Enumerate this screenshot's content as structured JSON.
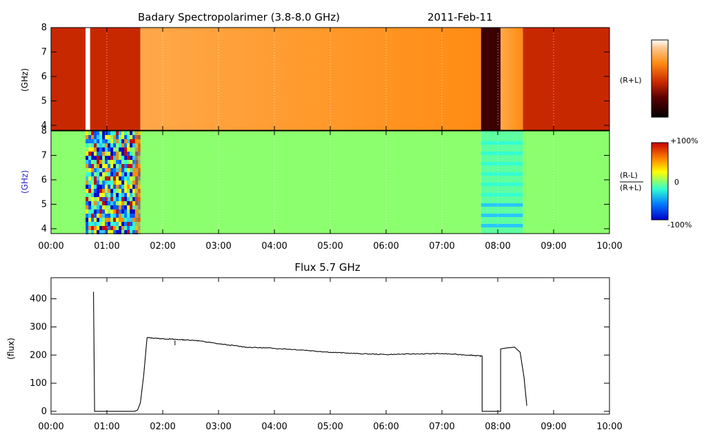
{
  "chart_data": [
    {
      "type": "heatmap",
      "title": "Badary Spectropolarimer (3.8-8.0 GHz)",
      "date": "2011-Feb-11",
      "ylabel": "(GHz)",
      "right_label": "(R+L)",
      "ylim": [
        3.8,
        8.0
      ],
      "yticks": [
        "4",
        "5",
        "6",
        "7",
        "8"
      ],
      "xlim_hours": [
        0,
        10
      ],
      "segments": [
        {
          "start_h": 0.0,
          "end_h": 0.62,
          "level": "dark-red"
        },
        {
          "start_h": 0.62,
          "end_h": 0.7,
          "level": "white"
        },
        {
          "start_h": 0.7,
          "end_h": 1.6,
          "level": "dark-red"
        },
        {
          "start_h": 1.6,
          "end_h": 7.7,
          "level": "orange"
        },
        {
          "start_h": 7.7,
          "end_h": 8.05,
          "level": "black"
        },
        {
          "start_h": 8.05,
          "end_h": 8.45,
          "level": "orange"
        },
        {
          "start_h": 8.45,
          "end_h": 10.0,
          "level": "dark-red"
        }
      ]
    },
    {
      "type": "heatmap",
      "ylabel": "(GHz)",
      "right_label_num": "(R-L)",
      "right_label_den": "(R+L)",
      "ylim": [
        3.8,
        8.0
      ],
      "yticks": [
        "4",
        "5",
        "6",
        "7",
        "8"
      ],
      "xlim_hours": [
        0,
        10
      ],
      "colorbar_labels": [
        "+100%",
        "0",
        "-100%"
      ],
      "segments": [
        {
          "start_h": 0.0,
          "end_h": 0.62,
          "level": "neutral"
        },
        {
          "start_h": 0.62,
          "end_h": 1.6,
          "level": "noisy"
        },
        {
          "start_h": 1.6,
          "end_h": 7.7,
          "level": "neutral"
        },
        {
          "start_h": 7.7,
          "end_h": 8.45,
          "level": "slightly-negative"
        },
        {
          "start_h": 8.45,
          "end_h": 10.0,
          "level": "neutral"
        }
      ]
    },
    {
      "type": "line",
      "title": "Flux 5.7 GHz",
      "ylabel": "(flux)",
      "ylim": [
        -10,
        475
      ],
      "yticks": [
        "0",
        "100",
        "200",
        "300",
        "400"
      ],
      "xlim_hours": [
        0,
        10
      ],
      "x_hours": [
        0.76,
        0.76,
        0.78,
        1.5,
        1.55,
        1.6,
        1.66,
        1.72,
        2.0,
        2.3,
        2.6,
        3.0,
        3.5,
        4.0,
        4.5,
        5.0,
        5.5,
        6.0,
        6.5,
        7.0,
        7.5,
        7.72,
        7.72,
        8.05,
        8.05,
        8.15,
        8.3,
        8.4,
        8.47,
        8.52
      ],
      "flux": [
        425,
        425,
        0,
        0,
        5,
        30,
        130,
        262,
        258,
        255,
        252,
        240,
        228,
        224,
        218,
        210,
        205,
        202,
        204,
        205,
        200,
        196,
        0,
        0,
        222,
        225,
        228,
        210,
        120,
        20
      ],
      "gaps_after_index": [
        21,
        23
      ]
    }
  ],
  "xtick_labels": [
    "00:00",
    "01:00",
    "02:00",
    "03:00",
    "04:00",
    "05:00",
    "06:00",
    "07:00",
    "08:00",
    "09:00",
    "10:00"
  ],
  "colors": {
    "dark_red": "#c82800",
    "orange": "#ff8c14",
    "orange_light": "#ffa84a",
    "black_red": "#3c0000",
    "neutral_green": "#8cff6e",
    "cyan": "#32ffd2",
    "deep_blue": "#0000d2"
  }
}
